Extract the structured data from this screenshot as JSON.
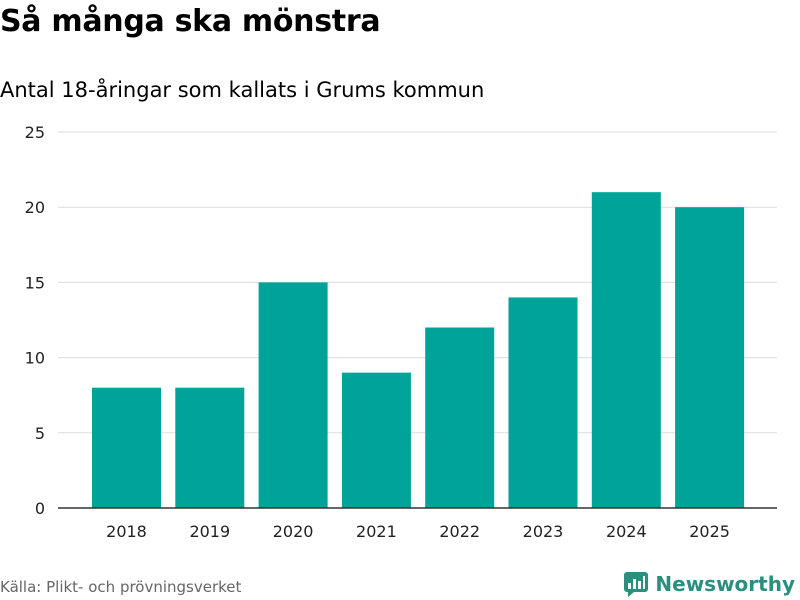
{
  "colors": {
    "bar": "#00a398",
    "grid": "#dddddd",
    "axis": "#333333",
    "source_text": "#666666",
    "brand": "#2b8f7e"
  },
  "chart_data": {
    "type": "bar",
    "title": "Så många ska mönstra",
    "subtitle": "Antal 18-åringar som kallats i Grums kommun",
    "categories": [
      "2018",
      "2019",
      "2020",
      "2021",
      "2022",
      "2023",
      "2024",
      "2025"
    ],
    "values": [
      8,
      8,
      15,
      9,
      12,
      14,
      21,
      20
    ],
    "ylim": [
      0,
      25
    ],
    "yticks": [
      0,
      5,
      10,
      15,
      20,
      25
    ],
    "xlabel": "",
    "ylabel": "",
    "grid": true
  },
  "footer": {
    "source": "Källa: Plikt- och prövningsverket",
    "brand": "Newsworthy"
  }
}
